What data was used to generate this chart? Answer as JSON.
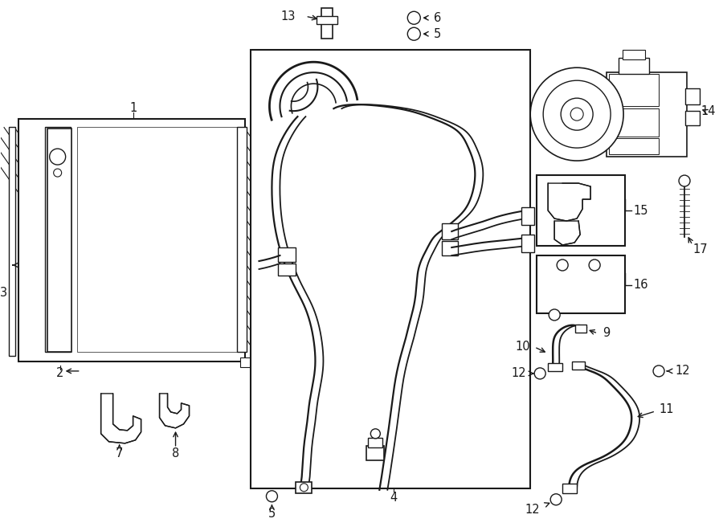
{
  "bg_color": "#ffffff",
  "line_color": "#1a1a1a",
  "fig_width": 9.0,
  "fig_height": 6.61,
  "font_size": 10.5
}
